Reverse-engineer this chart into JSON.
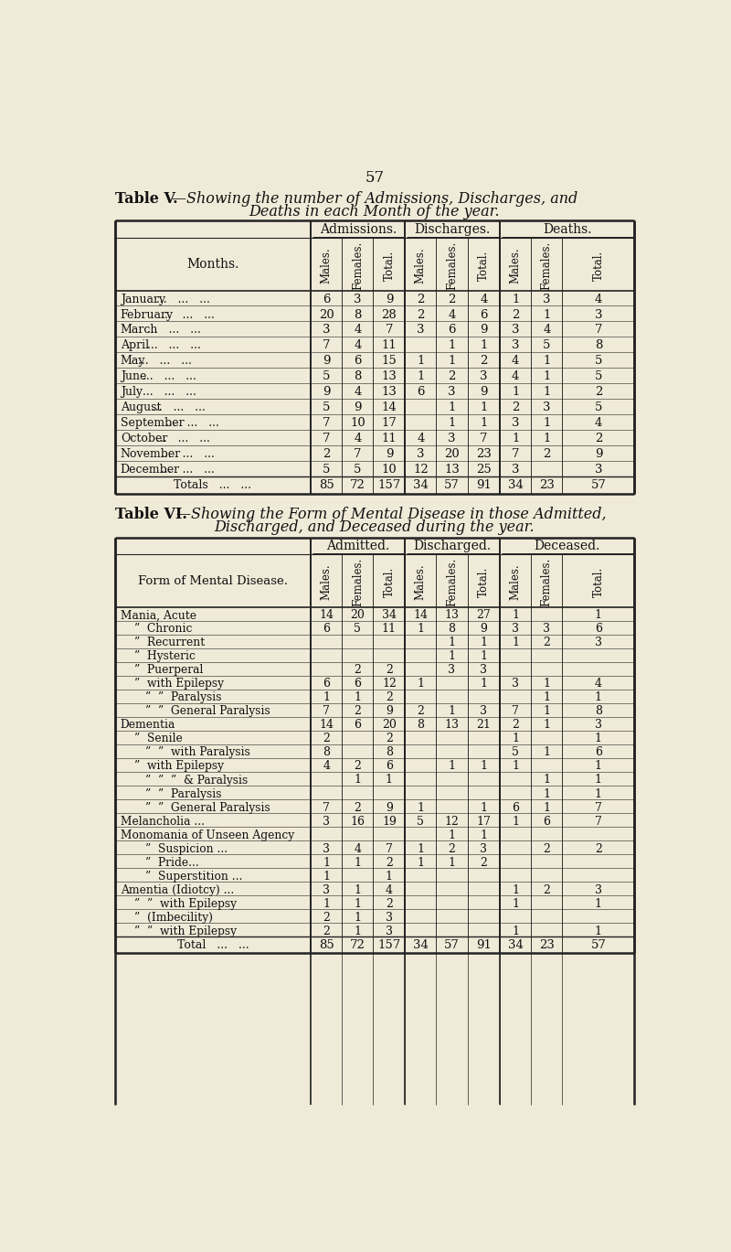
{
  "bg_color": "#f0ead8",
  "page_number": "57",
  "table5_title_roman": "Table V.",
  "table5_title_italic": "—Showing the number of Admissions, Discharges, and",
  "table5_title2": "Deaths in each Month of the year.",
  "table5_col_header": "Months.",
  "table5_groups": [
    "Admissions.",
    "Discharges.",
    "Deaths."
  ],
  "table5_subheaders": [
    "Males.",
    "Females.",
    "Total."
  ],
  "table5_month_labels": [
    [
      "January",
      "   ...   ...   ..."
    ],
    [
      "February",
      "   ...   ...   ..."
    ],
    [
      "March",
      "   ...   ...   ..."
    ],
    [
      "April ...",
      "   ...   ...   ..."
    ],
    [
      "May ...",
      "   ...   ...   ..."
    ],
    [
      "June ...",
      "   ...   ...   ..."
    ],
    [
      "July ...",
      "   ...   ...   ..."
    ],
    [
      "August",
      "   ...   ...   ..."
    ],
    [
      "September",
      "   ...   ...   ..."
    ],
    [
      "October",
      "   ...   ...   ..."
    ],
    [
      "November",
      "   ...   ...   ..."
    ],
    [
      "December",
      "   ...   ...   ..."
    ]
  ],
  "table5_data": [
    [
      6,
      3,
      9,
      2,
      2,
      4,
      1,
      3,
      4
    ],
    [
      20,
      8,
      28,
      2,
      4,
      6,
      2,
      1,
      3
    ],
    [
      3,
      4,
      7,
      3,
      6,
      9,
      3,
      4,
      7
    ],
    [
      7,
      4,
      11,
      "",
      1,
      1,
      3,
      5,
      8
    ],
    [
      9,
      6,
      15,
      1,
      1,
      2,
      4,
      1,
      5
    ],
    [
      5,
      8,
      13,
      1,
      2,
      3,
      4,
      1,
      5
    ],
    [
      9,
      4,
      13,
      6,
      3,
      9,
      1,
      1,
      2
    ],
    [
      5,
      9,
      14,
      "",
      1,
      1,
      2,
      3,
      5
    ],
    [
      7,
      10,
      17,
      "",
      1,
      1,
      3,
      1,
      4
    ],
    [
      7,
      4,
      11,
      4,
      3,
      7,
      1,
      1,
      2
    ],
    [
      2,
      7,
      9,
      3,
      20,
      23,
      7,
      2,
      9
    ],
    [
      5,
      5,
      10,
      12,
      13,
      25,
      3,
      "",
      3
    ]
  ],
  "table5_totals": [
    85,
    72,
    157,
    34,
    57,
    91,
    34,
    23,
    57
  ],
  "table6_title_roman": "Table VI.",
  "table6_title_italic": "—Showing the Form of Mental Disease in those Admitted,",
  "table6_title2": "Discharged, and Deceased during the year.",
  "table6_col_header": "Form of Mental Disease.",
  "table6_groups": [
    "Admitted.",
    "Discharged.",
    "Deceased."
  ],
  "table6_row_labels": [
    [
      "Mania, Acute",
      0,
      false
    ],
    [
      "”  Chronic",
      20,
      false
    ],
    [
      "”  Recurrent",
      20,
      false
    ],
    [
      "”  Hysteric",
      20,
      false
    ],
    [
      "”  Puerperal",
      20,
      false
    ],
    [
      "”  with Epilepsy",
      20,
      false
    ],
    [
      "”  ”  Paralysis",
      35,
      false
    ],
    [
      "”  ”  General Paralysis",
      35,
      false
    ],
    [
      "Dementia",
      0,
      false
    ],
    [
      "”  Senile",
      20,
      false
    ],
    [
      "”  ”  with Paralysis",
      35,
      false
    ],
    [
      "”  with Epilepsy",
      20,
      false
    ],
    [
      "”  ”  ”  & Paralysis",
      35,
      false
    ],
    [
      "”  ”  Paralysis",
      35,
      false
    ],
    [
      "”  ”  General Paralysis",
      35,
      false
    ],
    [
      "Melancholia ...",
      0,
      false
    ],
    [
      "Monomania of Unseen Agency",
      0,
      false
    ],
    [
      "”  Suspicion ...",
      35,
      false
    ],
    [
      "”  Pride...",
      35,
      false
    ],
    [
      "”  Superstition ...",
      35,
      false
    ],
    [
      "Amentia (Idiotcy) ...",
      0,
      false
    ],
    [
      "”  ”  with Epilepsy",
      20,
      false
    ],
    [
      "”  (Imbecility)",
      20,
      false
    ],
    [
      "”  ”  with Epilepsy",
      20,
      false
    ]
  ],
  "table6_rows": [
    [
      14,
      20,
      34,
      14,
      13,
      27,
      1,
      "",
      1
    ],
    [
      6,
      5,
      11,
      1,
      8,
      9,
      3,
      3,
      6
    ],
    [
      "",
      "",
      "",
      "",
      1,
      1,
      1,
      2,
      3
    ],
    [
      "",
      "",
      "",
      "",
      1,
      1,
      "",
      "",
      ""
    ],
    [
      "",
      2,
      2,
      "",
      3,
      3,
      "",
      "",
      ""
    ],
    [
      6,
      6,
      12,
      1,
      "",
      1,
      3,
      1,
      4
    ],
    [
      1,
      1,
      2,
      "",
      "",
      "",
      "",
      1,
      1
    ],
    [
      7,
      2,
      9,
      2,
      1,
      3,
      7,
      1,
      8
    ],
    [
      14,
      6,
      20,
      8,
      13,
      21,
      2,
      1,
      3
    ],
    [
      2,
      "",
      2,
      "",
      "",
      "",
      1,
      "",
      1
    ],
    [
      8,
      "",
      8,
      "",
      "",
      "",
      5,
      1,
      6
    ],
    [
      4,
      2,
      6,
      "",
      1,
      1,
      1,
      "",
      1
    ],
    [
      "",
      1,
      1,
      "",
      "",
      "",
      "",
      1,
      1
    ],
    [
      "",
      "",
      "",
      "",
      "",
      "",
      "",
      1,
      1
    ],
    [
      7,
      2,
      9,
      1,
      "",
      1,
      6,
      1,
      7
    ],
    [
      3,
      16,
      19,
      5,
      12,
      17,
      1,
      6,
      7
    ],
    [
      "",
      "",
      "",
      "",
      1,
      1,
      "",
      "",
      ""
    ],
    [
      3,
      4,
      7,
      1,
      2,
      3,
      "",
      2,
      2
    ],
    [
      1,
      1,
      2,
      1,
      1,
      2,
      "",
      "",
      ""
    ],
    [
      1,
      "",
      1,
      "",
      "",
      "",
      "",
      "",
      ""
    ],
    [
      3,
      1,
      4,
      "",
      "",
      "",
      1,
      2,
      3
    ],
    [
      1,
      1,
      2,
      "",
      "",
      "",
      1,
      "",
      1
    ],
    [
      2,
      1,
      3,
      "",
      "",
      "",
      "",
      "",
      ""
    ],
    [
      2,
      1,
      3,
      "",
      "",
      "",
      1,
      "",
      1
    ]
  ],
  "table6_totals": [
    85,
    72,
    157,
    34,
    57,
    91,
    34,
    23,
    57
  ]
}
